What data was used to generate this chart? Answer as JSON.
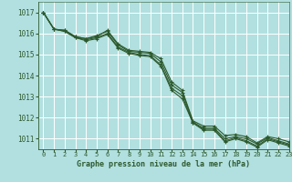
{
  "background_color": "#b2e0e0",
  "grid_color": "#c8e8e8",
  "line_color": "#2d5a2d",
  "text_color": "#2d5a2d",
  "xlabel": "Graphe pression niveau de la mer (hPa)",
  "xlim": [
    -0.5,
    23
  ],
  "ylim": [
    1010.5,
    1017.5
  ],
  "yticks": [
    1011,
    1012,
    1013,
    1014,
    1015,
    1016,
    1017
  ],
  "xticks": [
    0,
    1,
    2,
    3,
    4,
    5,
    6,
    7,
    8,
    9,
    10,
    11,
    12,
    13,
    14,
    15,
    16,
    17,
    18,
    19,
    20,
    21,
    22,
    23
  ],
  "series": [
    [
      1017.0,
      1016.2,
      1016.15,
      1015.85,
      1015.75,
      1015.85,
      1016.15,
      1015.5,
      1015.2,
      1015.15,
      1015.1,
      1014.8,
      1013.7,
      1013.3,
      1011.85,
      1011.6,
      1011.6,
      1011.15,
      1011.2,
      1011.1,
      1010.8,
      1011.1,
      1011.0,
      1010.85
    ],
    [
      1017.0,
      1016.2,
      1016.15,
      1015.85,
      1015.75,
      1015.9,
      1016.1,
      1015.45,
      1015.15,
      1015.1,
      1015.05,
      1014.65,
      1013.55,
      1013.2,
      1011.8,
      1011.5,
      1011.5,
      1011.0,
      1011.1,
      1011.0,
      1010.75,
      1011.05,
      1010.9,
      1010.75
    ],
    [
      1017.0,
      1016.2,
      1016.1,
      1015.8,
      1015.7,
      1015.8,
      1016.0,
      1015.35,
      1015.1,
      1015.0,
      1014.95,
      1014.5,
      1013.4,
      1013.05,
      1011.75,
      1011.45,
      1011.45,
      1010.9,
      1011.05,
      1010.9,
      1010.65,
      1011.0,
      1010.85,
      1010.7
    ],
    [
      1017.0,
      1016.2,
      1016.1,
      1015.8,
      1015.65,
      1015.75,
      1015.95,
      1015.3,
      1015.05,
      1014.95,
      1014.9,
      1014.45,
      1013.3,
      1012.9,
      1011.75,
      1011.4,
      1011.4,
      1010.85,
      1011.0,
      1010.85,
      1010.6,
      1010.95,
      1010.8,
      1010.65
    ]
  ]
}
